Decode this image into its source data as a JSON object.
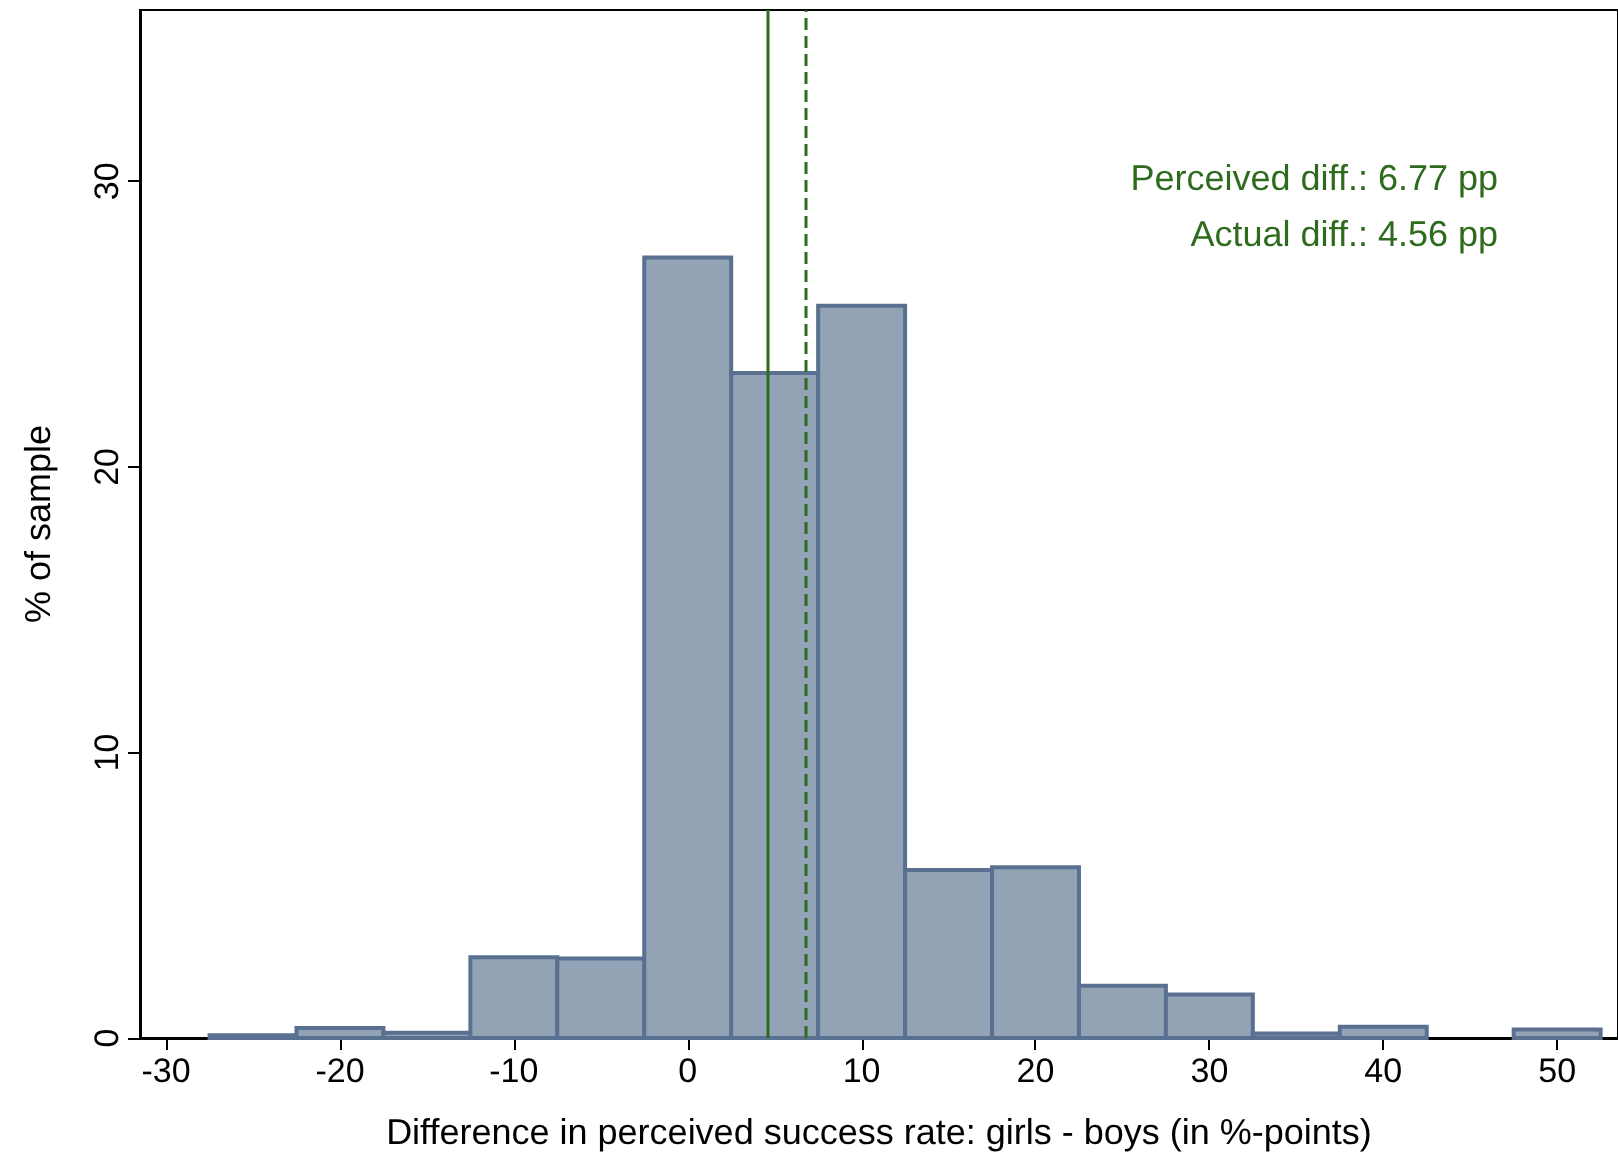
{
  "chart_data": {
    "type": "histogram",
    "xlabel": "Difference in perceived success rate: girls - boys (in %-points)",
    "ylabel": "% of sample",
    "bins": [
      -27.5,
      -22.5,
      -17.5,
      -12.5,
      -7.5,
      -2.5,
      2.5,
      7.5,
      12.5,
      17.5,
      22.5,
      27.5,
      32.5,
      37.5,
      42.5,
      47.5,
      52.5
    ],
    "values": [
      0.1,
      0.35,
      0.18,
      2.83,
      2.78,
      27.33,
      23.29,
      25.64,
      5.88,
      5.98,
      1.83,
      1.52,
      0.16,
      0.39,
      0,
      0.3
    ],
    "color": "#91a3b5",
    "xlim": [
      -31.5,
      53.5
    ],
    "xticks": [
      -30,
      -20,
      -10,
      0,
      10,
      20,
      30,
      40,
      50
    ],
    "ylim": [
      0,
      36
    ],
    "yticks": [
      0,
      10,
      20,
      30
    ],
    "grid": false,
    "ref_lines": [
      {
        "axis": "x",
        "value": 6.77,
        "label": "Perceived diff.: 6.77 pp",
        "color": "#2e6b1e",
        "line_style": "dashed"
      },
      {
        "axis": "x",
        "value": 4.56,
        "label": "Actual diff.: 4.56 pp",
        "color": "#2e6b1e",
        "line_style": "solid"
      }
    ]
  }
}
